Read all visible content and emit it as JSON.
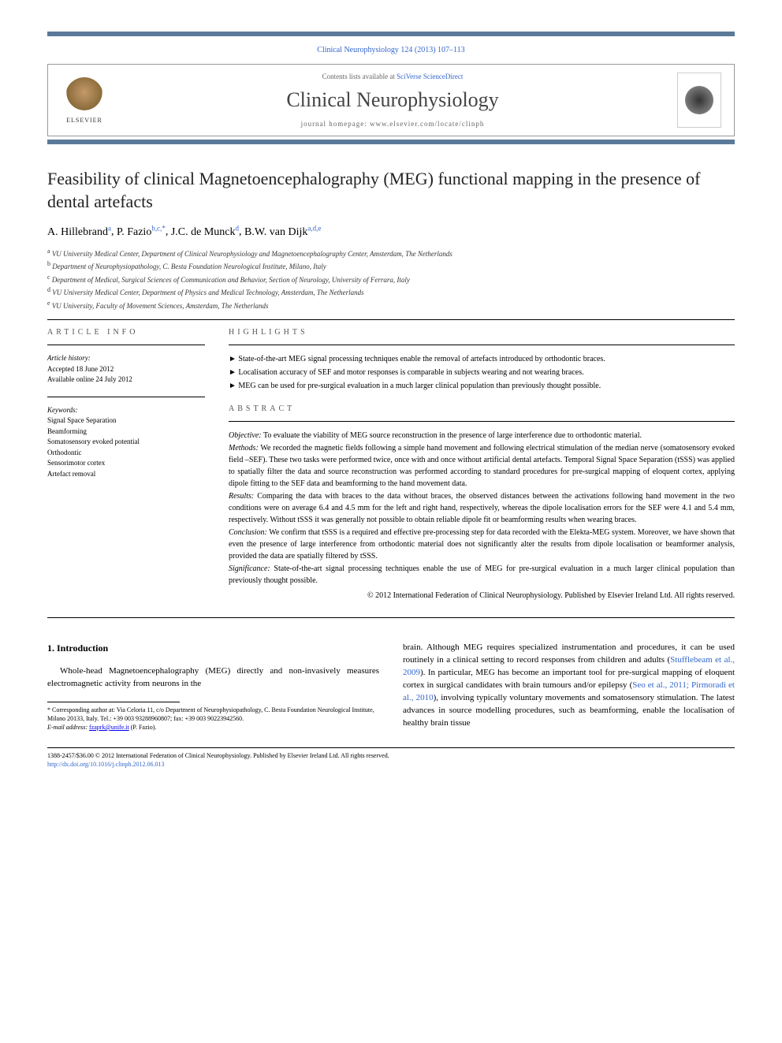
{
  "header": {
    "journal_ref": "Clinical Neurophysiology 124 (2013) 107–113",
    "contents_prefix": "Contents lists available at ",
    "contents_link": "SciVerse ScienceDirect",
    "journal_name": "Clinical Neurophysiology",
    "homepage_prefix": "journal homepage: ",
    "homepage_url": "www.elsevier.com/locate/clinph",
    "publisher": "ELSEVIER"
  },
  "title": "Feasibility of clinical Magnetoencephalography (MEG) functional mapping in the presence of dental artefacts",
  "authors": [
    {
      "name": "A. Hillebrand",
      "aff": "a"
    },
    {
      "name": "P. Fazio",
      "aff": "b,c,*"
    },
    {
      "name": "J.C. de Munck",
      "aff": "d"
    },
    {
      "name": "B.W. van Dijk",
      "aff": "a,d,e"
    }
  ],
  "affiliations": [
    {
      "key": "a",
      "text": "VU University Medical Center, Department of Clinical Neurophysiology and Magnetoencephalography Center, Amsterdam, The Netherlands"
    },
    {
      "key": "b",
      "text": "Department of Neurophysiopathology, C. Besta Foundation Neurological Institute, Milano, Italy"
    },
    {
      "key": "c",
      "text": "Department of Medical, Surgical Sciences of Communication and Behavior, Section of Neurology, University of Ferrara, Italy"
    },
    {
      "key": "d",
      "text": "VU University Medical Center, Department of Physics and Medical Technology, Amsterdam, The Netherlands"
    },
    {
      "key": "e",
      "text": "VU University, Faculty of Movement Sciences, Amsterdam, The Netherlands"
    }
  ],
  "article_info": {
    "heading": "ARTICLE INFO",
    "history_label": "Article history:",
    "accepted": "Accepted 18 June 2012",
    "online": "Available online 24 July 2012",
    "keywords_label": "Keywords:",
    "keywords": [
      "Signal Space Separation",
      "Beamforming",
      "Somatosensory evoked potential",
      "Orthodontic",
      "Sensorimotor cortex",
      "Artefact removal"
    ]
  },
  "highlights": {
    "heading": "HIGHLIGHTS",
    "items": [
      "► State-of-the-art MEG signal processing techniques enable the removal of artefacts introduced by orthodontic braces.",
      "► Localisation accuracy of SEF and motor responses is comparable in subjects wearing and not wearing braces.",
      "► MEG can be used for pre-surgical evaluation in a much larger clinical population than previously thought possible."
    ]
  },
  "abstract": {
    "heading": "ABSTRACT",
    "sections": [
      {
        "label": "Objective:",
        "text": " To evaluate the viability of MEG source reconstruction in the presence of large interference due to orthodontic material."
      },
      {
        "label": "Methods:",
        "text": " We recorded the magnetic fields following a simple hand movement and following electrical stimulation of the median nerve (somatosensory evoked field –SEF). These two tasks were performed twice, once with and once without artificial dental artefacts. Temporal Signal Space Separation (tSSS) was applied to spatially filter the data and source reconstruction was performed according to standard procedures for pre-surgical mapping of eloquent cortex, applying dipole fitting to the SEF data and beamforming to the hand movement data."
      },
      {
        "label": "Results:",
        "text": " Comparing the data with braces to the data without braces, the observed distances between the activations following hand movement in the two conditions were on average 6.4 and 4.5 mm for the left and right hand, respectively, whereas the dipole localisation errors for the SEF were 4.1 and 5.4 mm, respectively. Without tSSS it was generally not possible to obtain reliable dipole fit or beamforming results when wearing braces."
      },
      {
        "label": "Conclusion:",
        "text": " We confirm that tSSS is a required and effective pre-processing step for data recorded with the Elekta-MEG system. Moreover, we have shown that even the presence of large interference from orthodontic material does not significantly alter the results from dipole localisation or beamformer analysis, provided the data are spatially filtered by tSSS."
      },
      {
        "label": "Significance:",
        "text": " State-of-the-art signal processing techniques enable the use of MEG for pre-surgical evaluation in a much larger clinical population than previously thought possible."
      }
    ],
    "copyright": "© 2012 International Federation of Clinical Neurophysiology. Published by Elsevier Ireland Ltd. All rights reserved."
  },
  "intro": {
    "heading": "1. Introduction",
    "left_para": "Whole-head Magnetoencephalography (MEG) directly and non-invasively measures electromagnetic activity from neurons in the",
    "right_para_1": "brain. Although MEG requires specialized instrumentation and procedures, it can be used routinely in a clinical setting to record responses from children and adults (",
    "right_cite_1": "Stufflebeam et al., 2009",
    "right_para_2": "). In particular, MEG has become an important tool for pre-surgical mapping of eloquent cortex in surgical candidates with brain tumours and/or epilepsy (",
    "right_cite_2": "Seo et al., 2011; Pirmoradi et al., 2010",
    "right_para_3": "), involving typically voluntary movements and somatosensory stimulation. The latest advances in source modelling procedures, such as beamforming, enable the localisation of healthy brain tissue"
  },
  "corresponding": {
    "star": "*",
    "text": " Corresponding author at: Via Celoria 11, c/o Department of Neurophysiopathology, C. Besta Foundation Neurological Institute, Milano 20133, Italy. Tel.: +39 003 93288960807; fax: +39 003 90223942560.",
    "email_label": "E-mail address: ",
    "email": "fzaprk@unife.it",
    "email_suffix": " (P. Fazio)."
  },
  "footer": {
    "line1": "1388-2457/$36.00 © 2012 International Federation of Clinical Neurophysiology. Published by Elsevier Ireland Ltd. All rights reserved.",
    "doi": "http://dx.doi.org/10.1016/j.clinph.2012.06.013"
  },
  "colors": {
    "accent_bar": "#5b7a99",
    "link": "#3366cc",
    "text": "#000000",
    "muted": "#666666"
  }
}
